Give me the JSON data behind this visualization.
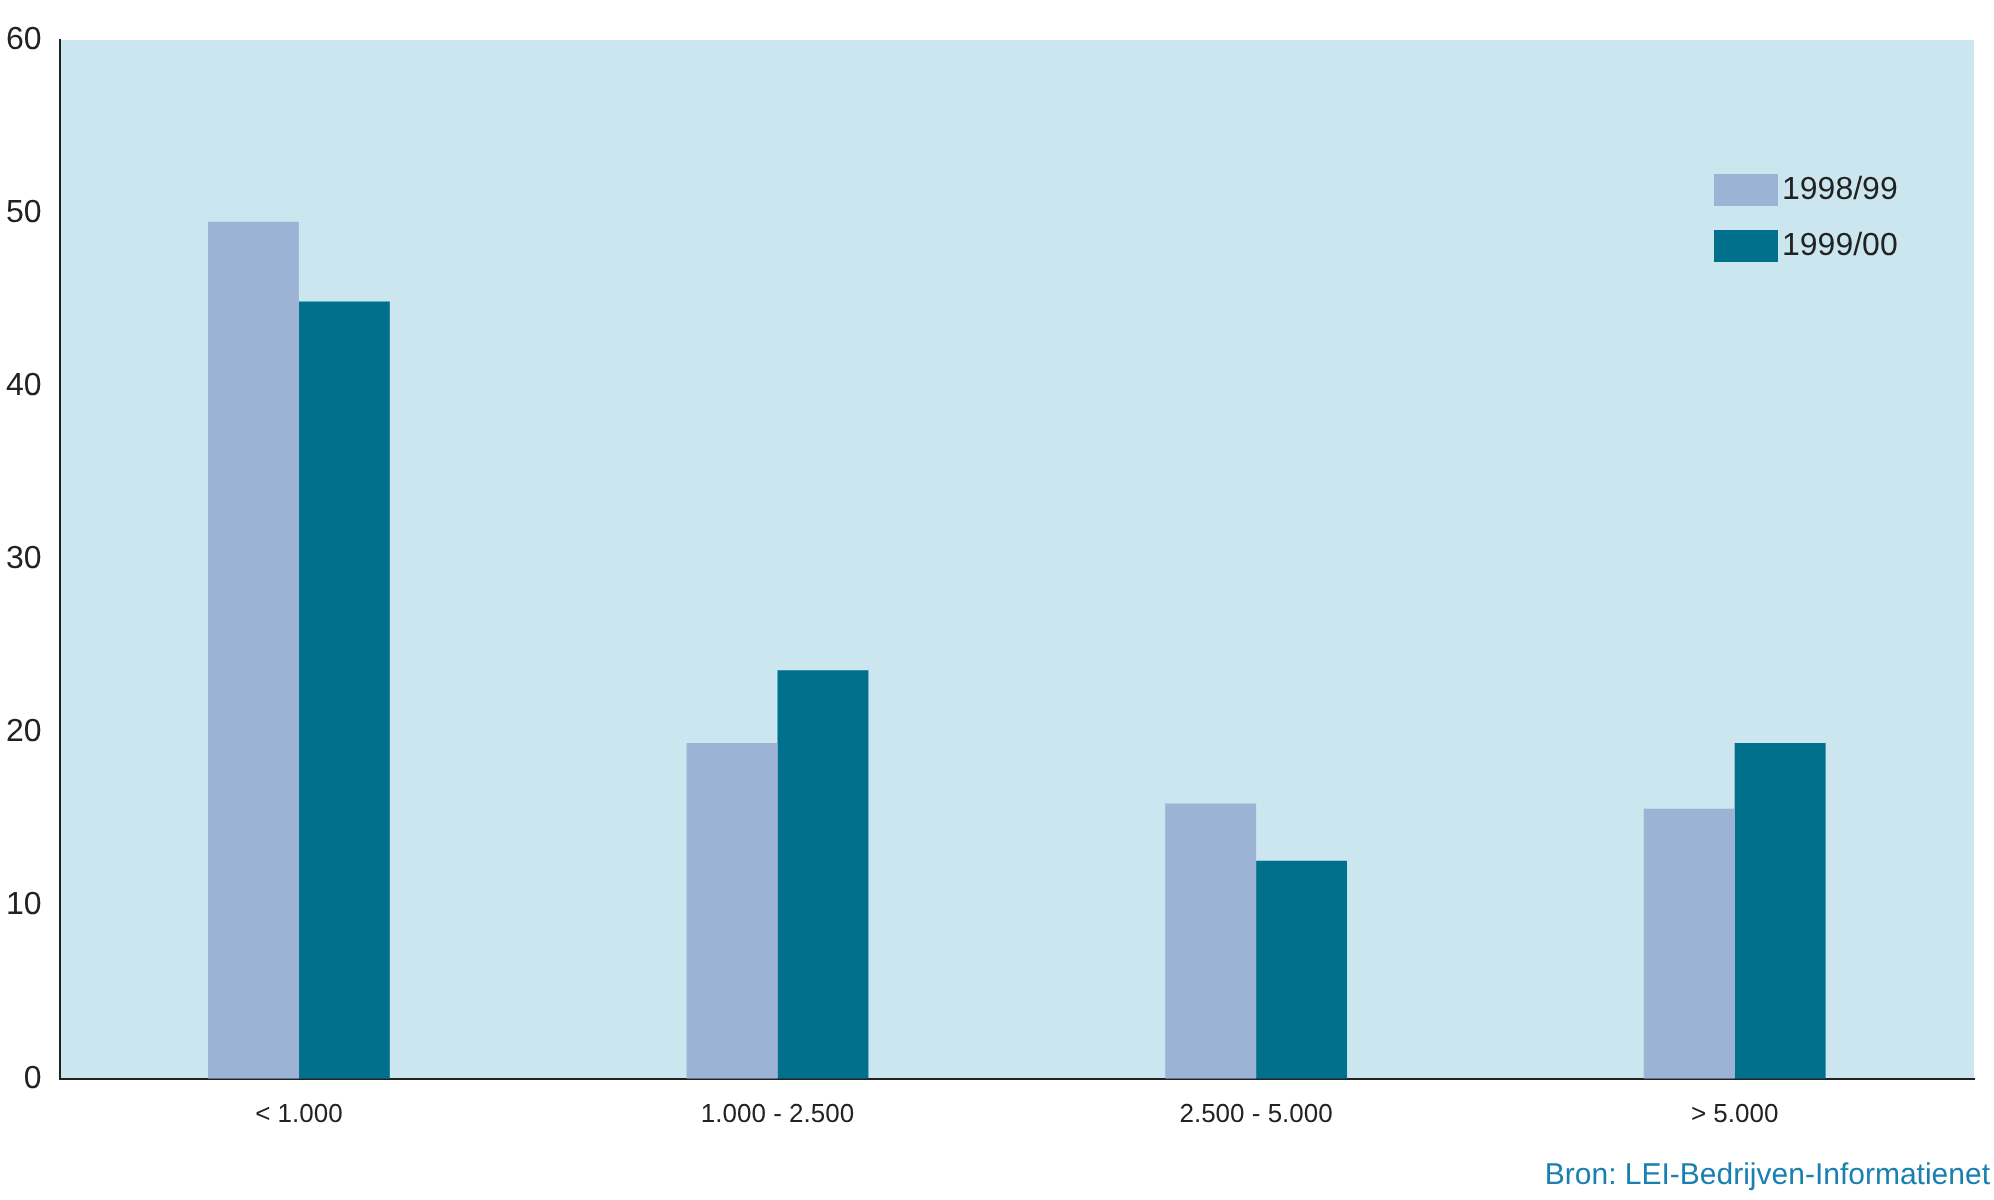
{
  "chart_data": {
    "type": "bar",
    "categories": [
      "< 1.000",
      "1.000 - 2.500",
      "2.500 - 5.000",
      "> 5.000"
    ],
    "series": [
      {
        "name": "1998/99",
        "color": "#9db3d6",
        "values": [
          49.5,
          19.4,
          15.9,
          15.6
        ]
      },
      {
        "name": "1999/00",
        "color": "#00708c",
        "values": [
          44.9,
          23.6,
          12.6,
          19.4
        ]
      }
    ],
    "ylim": [
      0,
      60
    ],
    "yticks": [
      0,
      10,
      20,
      30,
      40,
      50,
      60
    ],
    "grid": false,
    "legend": "top right",
    "annotations": [
      "Bron: LEI-Bedrijven-Informatienet"
    ]
  }
}
